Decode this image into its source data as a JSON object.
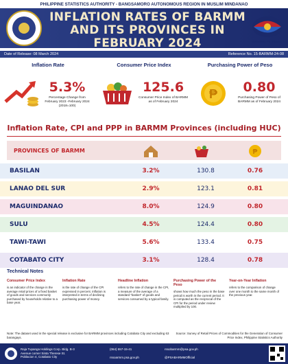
{
  "header": {
    "agency": "PHILIPPINE STATISTICS AUTHORITY - BANGSAMORO AUTONOMOUS REGION IN MUSLIM MINDANAO",
    "title": "INFLATION RATES OF BARMM AND ITS PROVINCES IN FEBRUARY 2024",
    "tagline": "BAGONG PILIPINAS",
    "release_date": "Date of Release: 08 March 2024",
    "reference": "Reference No. 15-BARMM-24-08"
  },
  "cards": [
    {
      "heading": "Inflation Rate",
      "value": "5.3%",
      "description": "Percentage Change from February 2023 -February 2024 (2018=100)"
    },
    {
      "heading": "Consumer Price Index",
      "value": "125.6",
      "description": "Consumer Price Index of BARMM as of February 2024"
    },
    {
      "heading": "Purchasing Power of Peso",
      "value": "0.80",
      "description": "Purchasing Power of Peso of BARMM as of February 2024"
    }
  ],
  "table": {
    "title": "Inflation Rate, CPI and PPP in BARMM Provinces (including HUC)",
    "header": "PROVINCES OF BARMM",
    "rows": [
      [
        "BASILAN",
        "3.2%",
        "130.8",
        "0.76"
      ],
      [
        "LANAO DEL SUR",
        "2.9%",
        "123.1",
        "0.81"
      ],
      [
        "MAGUINDANAO",
        "8.0%",
        "124.9",
        "0.80"
      ],
      [
        "SULU",
        "4.5%",
        "124.4",
        "0.80"
      ],
      [
        "TAWI-TAWI",
        "5.6%",
        "133.4",
        "0.75"
      ],
      [
        "COTABATO CITY",
        "3.1%",
        "128.4",
        "0.78"
      ]
    ]
  },
  "notes": {
    "title": "Technical Notes",
    "items": [
      {
        "heading": "Consumer Price Index",
        "text": "is an indicator of the change in the average retail prices of a fixed basket of goods and services commonly purchased by households relative to a base year."
      },
      {
        "heading": "Inflation Rate",
        "text": "is the rate of change of the CPI expressed in percent. Inflation is interpreted in terms of declining purchasing power of money."
      },
      {
        "heading": "Headline Inflation",
        "text": "refers to the rate of change in the CPI, a measure of the average of a standard \"basket\" of goods and services consumed by a typical family."
      },
      {
        "heading": "Purchasing Power of the Peso",
        "text": "shows how much the peso in the base period is worth in the current period. It is computed as the reciprocal of the CPI for the period under review multiplied by 100."
      },
      {
        "heading": "Year-on-Year Inflation",
        "text": "refers to the comparison of change over one month to the same month of the previous year."
      }
    ],
    "note": "Note:  The dataset used in the special release is exclusive for BARMM provinces including Cotabato City and excluding 63 barangays.",
    "source": "Source: Survey of Retail Prices of Commodities for the Generation of Consumer Price Index, Philippine Statistics Authority"
  },
  "footer": {
    "address": "Raja Tupanga Holdings Corp. Bldg. B-3 Avenue corner Sinta Therese St. Poblacion 4, Cotabato City",
    "phone": "(064) 557-15-41",
    "website": "rssoarmm.psa.gov.ph",
    "email": "rssobarmm@psa.gov.ph",
    "facebook": "@PSABARMMOfficial"
  }
}
